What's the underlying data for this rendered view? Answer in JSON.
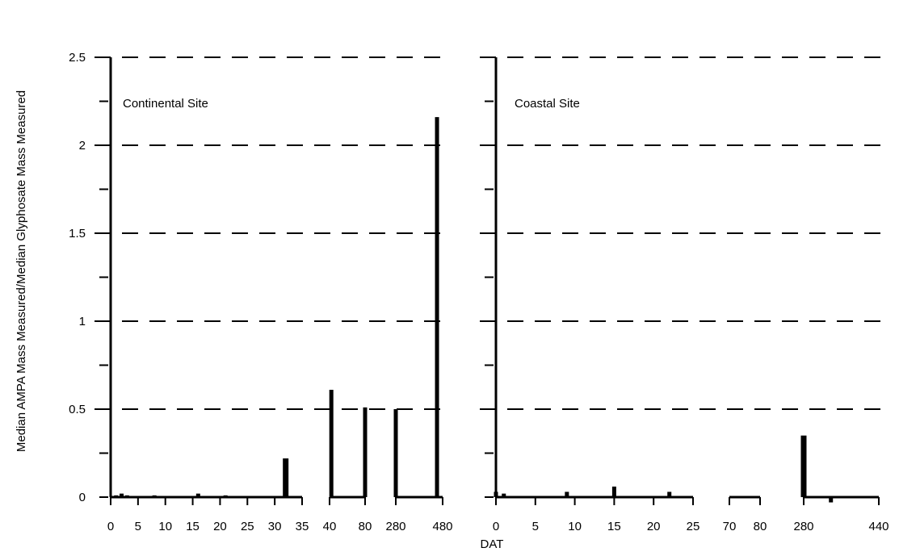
{
  "chart_data": {
    "type": "bar",
    "ylabel": "Median AMPA Mass Measured/Median Glyphosate Mass Measured",
    "xlabel": "DAT",
    "ylim": [
      0,
      2.5
    ],
    "y_ticks": [
      "0",
      "0.5",
      "1",
      "1.5",
      "2",
      "2.5"
    ],
    "grid": "horizontal dashed at 0.5, 1, 1.5, 2, 2.5",
    "panels": [
      {
        "label": "Continental Site",
        "x_segments": [
          {
            "range": [
              0,
              35
            ],
            "ticks": [
              "0",
              "5",
              "10",
              "15",
              "20",
              "25",
              "30",
              "35"
            ]
          },
          {
            "range": [
              40,
              80
            ],
            "ticks": [
              "40",
              "80"
            ]
          },
          {
            "range": [
              280,
              480
            ],
            "ticks": [
              "280",
              "480"
            ]
          }
        ],
        "bars": [
          {
            "x": 1,
            "y": 0.01
          },
          {
            "x": 2,
            "y": 0.02
          },
          {
            "x": 3,
            "y": 0.01
          },
          {
            "x": 8,
            "y": 0.01
          },
          {
            "x": 16,
            "y": 0.02
          },
          {
            "x": 21,
            "y": 0.01
          },
          {
            "x": 32,
            "y": 0.22
          },
          {
            "x": 42,
            "y": 0.61
          },
          {
            "x": 80,
            "y": 0.51
          },
          {
            "x": 280,
            "y": 0.5
          },
          {
            "x": 456,
            "y": 2.16
          }
        ]
      },
      {
        "label": "Coastal Site",
        "x_segments": [
          {
            "range": [
              0,
              25
            ],
            "ticks": [
              "0",
              "5",
              "10",
              "15",
              "20",
              "25"
            ]
          },
          {
            "range": [
              70,
              80
            ],
            "ticks": [
              "70",
              "80"
            ]
          },
          {
            "range": [
              280,
              440
            ],
            "ticks": [
              "280",
              "440"
            ]
          }
        ],
        "bars": [
          {
            "x": 0,
            "y": 0.03
          },
          {
            "x": 1,
            "y": 0.02
          },
          {
            "x": 9,
            "y": 0.03
          },
          {
            "x": 15,
            "y": 0.06
          },
          {
            "x": 22,
            "y": 0.03
          },
          {
            "x": 280,
            "y": 0.35
          },
          {
            "x": 338,
            "y": -0.03
          },
          {
            "x": 428,
            "y": 0.005
          }
        ]
      }
    ]
  }
}
